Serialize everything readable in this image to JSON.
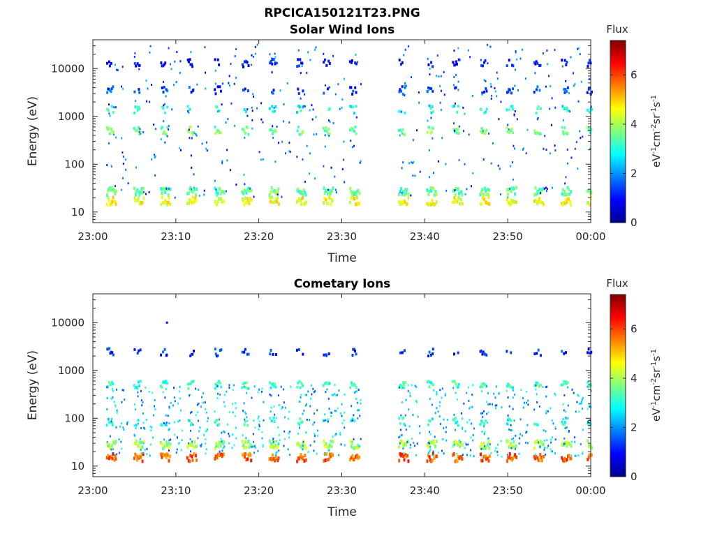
{
  "figure_title": "RPCICA150121T23.PNG",
  "time_axis": {
    "start": "23:00",
    "end": "00:00"
  },
  "chart_data": [
    {
      "type": "heatmap",
      "title": "Solar Wind Ions",
      "xlabel": "Time",
      "ylabel": "Energy (eV)",
      "yscale": "log",
      "ylim": [
        6,
        40000
      ],
      "x_ticks": [
        "23:00",
        "23:10",
        "23:20",
        "23:30",
        "23:40",
        "23:50",
        "00:00"
      ],
      "y_ticks": [
        "10",
        "100",
        "1000",
        "10000"
      ],
      "y_tick_values": [
        10,
        100,
        1000,
        10000
      ],
      "colorbar": {
        "title": "Flux",
        "label": "eV-1cm-2sr-1s-1",
        "ticks": [
          "0",
          "2",
          "4",
          "6"
        ],
        "range": [
          0,
          7.4
        ]
      },
      "data_gap_minutes": [
        32.3,
        35.6
      ],
      "sweep_start_minutes": [
        1.6,
        4.9,
        8.1,
        11.3,
        14.6,
        17.9,
        21.2,
        24.5,
        27.7,
        30.9,
        36.8,
        40.2,
        43.3,
        46.6,
        49.8,
        53.1,
        56.4,
        59.5
      ],
      "bands": [
        {
          "energy_eV": 17,
          "flux": 4.5
        },
        {
          "energy_eV": 27,
          "flux": 3.5
        },
        {
          "energy_eV": 500,
          "flux": 3.6
        },
        {
          "energy_eV": 1400,
          "flux": 3.0
        },
        {
          "energy_eV": 3500,
          "flux": 1.4
        },
        {
          "energy_eV": 13000,
          "flux": 1.0
        }
      ],
      "grid": false
    },
    {
      "type": "heatmap",
      "title": "Cometary Ions",
      "xlabel": "Time",
      "ylabel": "Energy (eV)",
      "yscale": "log",
      "ylim": [
        6,
        40000
      ],
      "x_ticks": [
        "23:00",
        "23:10",
        "23:20",
        "23:30",
        "23:40",
        "23:50",
        "00:00"
      ],
      "y_ticks": [
        "10",
        "100",
        "1000",
        "10000"
      ],
      "y_tick_values": [
        10,
        100,
        1000,
        10000
      ],
      "colorbar": {
        "title": "Flux",
        "label": "eV-1cm-2sr-1s-1",
        "ticks": [
          "0",
          "2",
          "4",
          "6"
        ],
        "range": [
          0,
          7.4
        ]
      },
      "data_gap_minutes": [
        32.3,
        35.6
      ],
      "sweep_start_minutes": [
        1.6,
        4.9,
        8.1,
        11.3,
        14.6,
        17.9,
        21.2,
        24.5,
        27.7,
        30.9,
        36.8,
        40.2,
        43.3,
        46.6,
        49.8,
        53.1,
        56.4,
        59.5
      ],
      "bands": [
        {
          "energy_eV": 15,
          "flux": 5.8
        },
        {
          "energy_eV": 28,
          "flux": 4.0
        },
        {
          "energy_eV": 85,
          "flux": 3.0
        },
        {
          "energy_eV": 500,
          "flux": 3.2
        },
        {
          "energy_eV": 2400,
          "flux": 1.2
        }
      ],
      "isolated_points": [
        {
          "minute": 8.8,
          "energy_eV": 10000,
          "flux": 1.0
        }
      ],
      "grid": false
    }
  ]
}
